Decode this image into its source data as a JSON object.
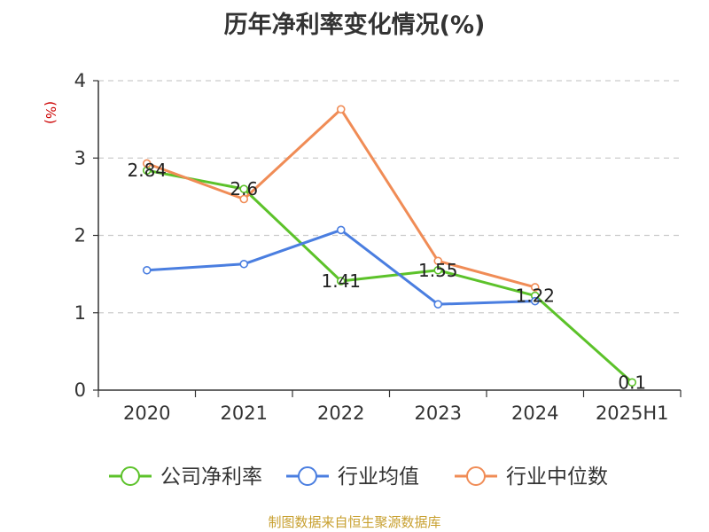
{
  "chart_data": {
    "type": "line",
    "title": "历年净利率变化情况(%)",
    "ylabel": "(%)",
    "xlabel": "",
    "categories": [
      "2020",
      "2021",
      "2022",
      "2023",
      "2024",
      "2025H1"
    ],
    "ylim": [
      0,
      4
    ],
    "yticks": [
      "0",
      "1",
      "2",
      "3",
      "4"
    ],
    "grid": true,
    "legend_position": "bottom",
    "series": [
      {
        "name": "公司净利率",
        "color": "#5cc22a",
        "values": [
          2.84,
          2.6,
          1.41,
          1.55,
          1.22,
          0.1
        ],
        "labels": [
          "2.84",
          "2.6",
          "1.41",
          "1.55",
          "1.22",
          "0.1"
        ]
      },
      {
        "name": "行业均值",
        "color": "#4a7ee0",
        "values": [
          1.55,
          1.63,
          2.07,
          1.11,
          1.15,
          null
        ]
      },
      {
        "name": "行业中位数",
        "color": "#f08c56",
        "values": [
          2.93,
          2.47,
          3.63,
          1.67,
          1.33,
          null
        ]
      }
    ]
  },
  "source": "制图数据来自恒生聚源数据库"
}
